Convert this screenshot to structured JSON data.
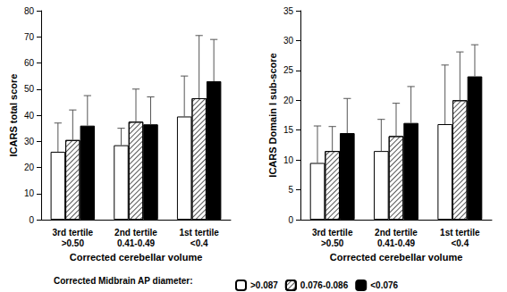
{
  "chart_data": [
    {
      "type": "bar",
      "y_label": "ICARS total score",
      "x_label": "Corrected cerebellar volume",
      "categories": [
        "3rd tertile\n>0.50",
        "2nd tertile\n0.41-0.49",
        "1st tertile\n<0.4"
      ],
      "ylim": [
        0,
        80
      ],
      "yticks": [
        0,
        10,
        20,
        30,
        40,
        50,
        60,
        70,
        80
      ],
      "series": [
        {
          "name": ">0.087",
          "color": "#ffffff",
          "values": [
            26,
            28.5,
            39.5
          ],
          "error": [
            11,
            6.5,
            15.5
          ]
        },
        {
          "name": "0.076-0.086",
          "color": "#555555",
          "marker": "hatch",
          "values": [
            30.5,
            37.5,
            46.5
          ],
          "error": [
            11.5,
            12.5,
            24
          ]
        },
        {
          "name": "<0.076",
          "color": "#000000",
          "values": [
            36,
            36.5,
            53
          ],
          "error": [
            11.5,
            10.5,
            16
          ]
        }
      ]
    },
    {
      "type": "bar",
      "y_label": "ICARS Domain I sub-score",
      "x_label": "Corrected cerebellar volume",
      "categories": [
        "3rd tertile\n>0.50",
        "2nd tertile\n0.41-0.49",
        "1st tertile\n<0.4"
      ],
      "ylim": [
        0,
        35
      ],
      "yticks": [
        0,
        5,
        10,
        15,
        20,
        25,
        30,
        35
      ],
      "series": [
        {
          "name": ">0.087",
          "color": "#ffffff",
          "values": [
            9.5,
            11.5,
            16
          ],
          "error": [
            6.2,
            5.3,
            9.9
          ]
        },
        {
          "name": "0.076-0.086",
          "color": "#555555",
          "marker": "hatch",
          "values": [
            11.5,
            14,
            20
          ],
          "error": [
            4.1,
            5.5,
            8.1
          ]
        },
        {
          "name": "<0.076",
          "color": "#000000",
          "values": [
            14.5,
            16.2,
            24
          ],
          "error": [
            5.8,
            6.1,
            5.3
          ]
        }
      ]
    }
  ],
  "legend_title": "Corrected Midbrain AP diameter:"
}
